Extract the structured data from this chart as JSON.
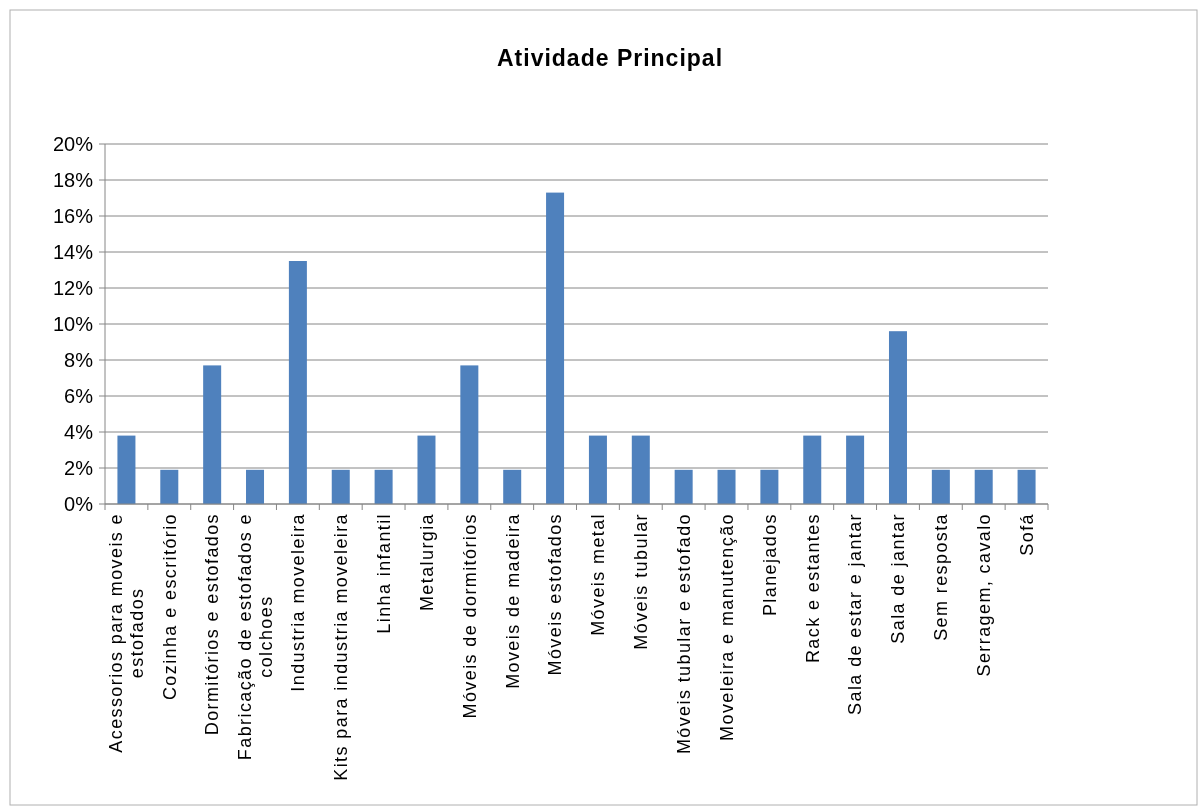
{
  "chart_data": {
    "type": "bar",
    "title": "Atividade Principal",
    "categories": [
      "Acessorios para moveis e estofados",
      "Cozinha e escritório",
      "Dormitórios e estofados",
      "Fabricação de estofados e colchoes",
      "Industria moveleira",
      "Kits para industria moveleira",
      "Linha infantil",
      "Metalurgia",
      "Móveis de dormitórios",
      "Moveis de madeira",
      "Móveis estofados",
      "Móveis metal",
      "Móveis tubular",
      "Móveis tubular e estofado",
      "Moveleira e manutenção",
      "Planejados",
      "Rack e estantes",
      "Sala de estar e jantar",
      "Sala de jantar",
      "Sem resposta",
      "Serragem, cavalo",
      "Sofá"
    ],
    "values": [
      3.8,
      1.9,
      7.7,
      1.9,
      13.5,
      1.9,
      1.9,
      3.8,
      7.7,
      1.9,
      17.3,
      3.8,
      3.8,
      1.9,
      1.9,
      1.9,
      3.8,
      3.8,
      9.6,
      1.9,
      1.9,
      1.9
    ],
    "color": "#4f81bd",
    "ylim": [
      0,
      20
    ],
    "yticks": [
      {
        "value": 0,
        "label": "0%"
      },
      {
        "value": 2,
        "label": "2%"
      },
      {
        "value": 4,
        "label": "4%"
      },
      {
        "value": 6,
        "label": "6%"
      },
      {
        "value": 8,
        "label": "8%"
      },
      {
        "value": 10,
        "label": "10%"
      },
      {
        "value": 12,
        "label": "12%"
      },
      {
        "value": 14,
        "label": "14%"
      },
      {
        "value": 16,
        "label": "16%"
      },
      {
        "value": 18,
        "label": "18%"
      },
      {
        "value": 20,
        "label": "20%"
      }
    ],
    "grid": "y"
  }
}
